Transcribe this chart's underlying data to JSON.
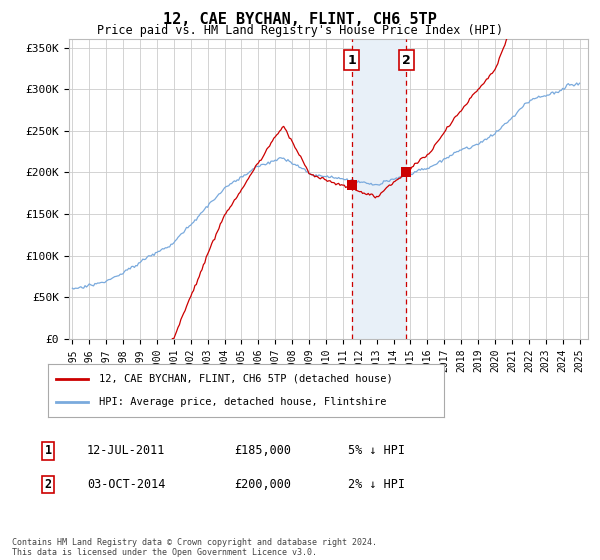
{
  "title": "12, CAE BYCHAN, FLINT, CH6 5TP",
  "subtitle": "Price paid vs. HM Land Registry's House Price Index (HPI)",
  "ylabel_ticks": [
    "£0",
    "£50K",
    "£100K",
    "£150K",
    "£200K",
    "£250K",
    "£300K",
    "£350K"
  ],
  "ytick_values": [
    0,
    50000,
    100000,
    150000,
    200000,
    250000,
    300000,
    350000
  ],
  "ylim": [
    0,
    360000
  ],
  "xlim_start": 1994.8,
  "xlim_end": 2025.5,
  "transaction1_year": 2011.53,
  "transaction1_price": 185000,
  "transaction1_label": "1",
  "transaction1_date": "12-JUL-2011",
  "transaction1_display": "£185,000",
  "transaction1_hpi": "5% ↓ HPI",
  "transaction2_year": 2014.75,
  "transaction2_price": 200000,
  "transaction2_label": "2",
  "transaction2_date": "03-OCT-2014",
  "transaction2_display": "£200,000",
  "transaction2_hpi": "2% ↓ HPI",
  "line_red_color": "#cc0000",
  "line_blue_color": "#7aaadd",
  "shade_color": "#e8f0f8",
  "vline_color": "#cc0000",
  "grid_color": "#cccccc",
  "legend1_text": "12, CAE BYCHAN, FLINT, CH6 5TP (detached house)",
  "legend2_text": "HPI: Average price, detached house, Flintshire",
  "footer": "Contains HM Land Registry data © Crown copyright and database right 2024.\nThis data is licensed under the Open Government Licence v3.0.",
  "background_color": "#ffffff"
}
